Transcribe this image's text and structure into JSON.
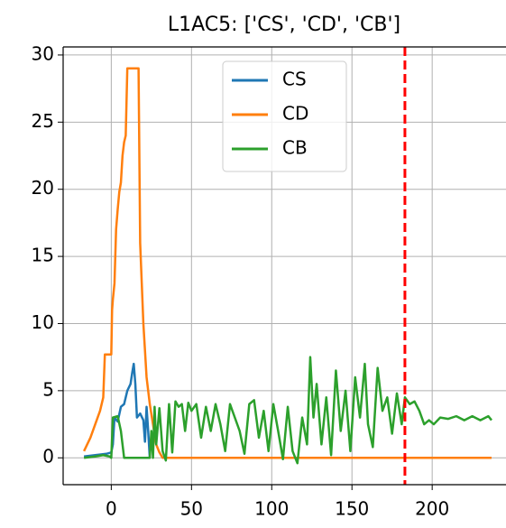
{
  "chart_data": {
    "type": "line",
    "title": "L1AC5: ['CS', 'CD', 'CB']",
    "xlim": [
      -30,
      246
    ],
    "ylim": [
      -2,
      30.6
    ],
    "xticks": [
      0,
      50,
      100,
      150,
      200
    ],
    "yticks": [
      0,
      5,
      10,
      15,
      20,
      25,
      30
    ],
    "grid": true,
    "legend": "upper center",
    "vline": {
      "x": 183,
      "color": "#ff0000",
      "style": "dashed"
    },
    "series": [
      {
        "name": "CS",
        "color": "#1f77b4",
        "x": [
          -17,
          -10,
          -3,
          0,
          1,
          2,
          4,
          6,
          8,
          10,
          12,
          13,
          14,
          15,
          16,
          18,
          20,
          21,
          22,
          23,
          24
        ],
        "values": [
          0.1,
          0.2,
          0.3,
          0.4,
          1,
          3,
          2.7,
          3.8,
          4,
          5,
          5.5,
          6.3,
          7,
          5.5,
          3,
          3.3,
          2.8,
          1.2,
          3.8,
          2,
          0
        ]
      },
      {
        "name": "CD",
        "color": "#ff7f0e",
        "x": [
          -17,
          -13,
          -10,
          -7,
          -5,
          -4,
          0,
          0.5,
          1,
          2,
          3,
          4,
          5,
          6,
          7,
          8,
          9,
          10,
          17,
          18,
          19,
          20,
          21,
          22,
          24,
          26,
          28,
          30,
          32,
          237
        ],
        "values": [
          0.5,
          1.5,
          2.5,
          3.5,
          4.5,
          7.7,
          7.7,
          11,
          11.8,
          13,
          17,
          18.5,
          19.8,
          20.5,
          22.5,
          23.5,
          24,
          29,
          29,
          16,
          13,
          10,
          8,
          6,
          4,
          2.5,
          1,
          0.4,
          0,
          0
        ]
      },
      {
        "name": "CB",
        "color": "#2ca02c",
        "x": [
          -17,
          -10,
          -5,
          -1,
          0,
          1,
          4,
          6,
          8,
          15,
          20,
          24,
          25,
          26,
          27,
          28,
          30,
          32,
          34,
          36,
          38,
          40,
          42,
          44,
          46,
          48,
          50,
          53,
          56,
          59,
          62,
          65,
          68,
          71,
          74,
          77,
          80,
          83,
          86,
          89,
          92,
          95,
          98,
          101,
          104,
          107,
          110,
          113,
          116,
          119,
          122,
          124,
          126,
          128,
          131,
          134,
          137,
          140,
          143,
          146,
          149,
          152,
          155,
          158,
          160,
          163,
          166,
          169,
          172,
          175,
          178,
          181,
          183,
          186,
          189,
          192,
          195,
          198,
          201,
          205,
          210,
          215,
          220,
          225,
          230,
          235,
          237
        ],
        "values": [
          0,
          0.1,
          0.2,
          0.1,
          0,
          3,
          3.1,
          2,
          0,
          0,
          0,
          0,
          2,
          0,
          3.8,
          1,
          3.7,
          0.5,
          -0.2,
          4,
          0.4,
          4.2,
          3.8,
          4,
          2,
          4.1,
          3.5,
          4,
          1.5,
          3.8,
          2,
          4,
          2.5,
          0.5,
          4,
          3,
          2,
          0.3,
          4,
          4.3,
          1.5,
          3.5,
          0.5,
          4,
          2,
          -0.1,
          3.8,
          0.5,
          -0.4,
          3,
          1,
          7.5,
          3,
          5.5,
          1,
          4.5,
          0.2,
          6.5,
          2,
          5,
          0.5,
          6,
          3,
          7,
          2.5,
          0.8,
          6.7,
          3.5,
          4.5,
          1.8,
          4.8,
          2.5,
          4.5,
          4,
          4.2,
          3.5,
          2.5,
          2.8,
          2.5,
          3,
          2.9,
          3.1,
          2.8,
          3.1,
          2.8,
          3.1,
          2.8
        ]
      }
    ]
  }
}
